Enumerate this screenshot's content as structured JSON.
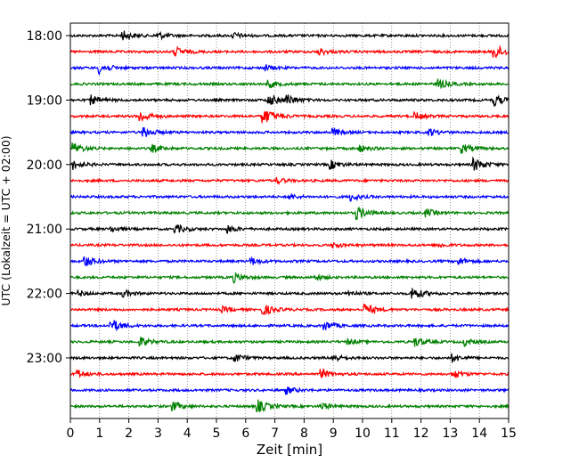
{
  "chart_data": {
    "type": "line",
    "xlabel": "Zeit  [min]",
    "ylabel": "UTC (Lokalzeit = UTC + 02:00)",
    "xlim": [
      0,
      15
    ],
    "x_ticks": [
      0,
      1,
      2,
      3,
      4,
      5,
      6,
      7,
      8,
      9,
      10,
      11,
      12,
      13,
      14,
      15
    ],
    "y_tick_labels": [
      "18:00",
      "19:00",
      "20:00",
      "21:00",
      "22:00",
      "23:00"
    ],
    "y_tick_trace_index": [
      0,
      4,
      8,
      12,
      16,
      20
    ],
    "trace_minutes": 15,
    "grid": "vertical dotted",
    "trace_colors": [
      "#000000",
      "#ff0000",
      "#0000ff",
      "#008000"
    ],
    "traces": [
      {
        "start": "18:00",
        "color": "#000000",
        "events": [
          [
            1.8,
            5
          ],
          [
            3.0,
            4
          ],
          [
            5.6,
            3
          ]
        ]
      },
      {
        "start": "18:15",
        "color": "#ff0000",
        "events": [
          [
            3.6,
            5
          ],
          [
            8.5,
            4
          ],
          [
            14.5,
            8
          ]
        ]
      },
      {
        "start": "18:30",
        "color": "#0000ff",
        "events": [
          [
            1.0,
            6
          ],
          [
            6.7,
            3
          ]
        ]
      },
      {
        "start": "18:45",
        "color": "#008000",
        "events": [
          [
            6.8,
            4
          ],
          [
            12.6,
            5
          ]
        ]
      },
      {
        "start": "19:00",
        "color": "#000000",
        "events": [
          [
            0.7,
            5
          ],
          [
            6.8,
            6
          ],
          [
            7.4,
            6
          ],
          [
            14.5,
            6
          ]
        ]
      },
      {
        "start": "19:15",
        "color": "#ff0000",
        "events": [
          [
            2.4,
            6
          ],
          [
            6.6,
            9
          ],
          [
            11.8,
            4
          ]
        ]
      },
      {
        "start": "19:30",
        "color": "#0000ff",
        "events": [
          [
            2.5,
            6
          ],
          [
            9.0,
            4
          ],
          [
            12.3,
            4
          ]
        ]
      },
      {
        "start": "19:45",
        "color": "#008000",
        "events": [
          [
            0.1,
            6
          ],
          [
            2.8,
            4
          ],
          [
            9.9,
            4
          ],
          [
            13.4,
            5
          ]
        ]
      },
      {
        "start": "20:00",
        "color": "#000000",
        "events": [
          [
            0.1,
            5
          ],
          [
            8.9,
            5
          ],
          [
            13.8,
            7
          ]
        ]
      },
      {
        "start": "20:15",
        "color": "#ff0000",
        "events": [
          [
            7.1,
            3
          ]
        ]
      },
      {
        "start": "20:30",
        "color": "#0000ff",
        "events": [
          [
            7.5,
            3
          ],
          [
            9.6,
            4
          ]
        ]
      },
      {
        "start": "20:45",
        "color": "#008000",
        "events": [
          [
            9.8,
            7
          ],
          [
            12.2,
            4
          ]
        ]
      },
      {
        "start": "21:00",
        "color": "#000000",
        "events": [
          [
            1.4,
            3
          ],
          [
            3.6,
            5
          ],
          [
            5.4,
            4
          ]
        ]
      },
      {
        "start": "21:15",
        "color": "#ff0000",
        "events": [
          [
            9.0,
            3
          ],
          [
            12.6,
            3
          ]
        ]
      },
      {
        "start": "21:30",
        "color": "#0000ff",
        "events": [
          [
            0.5,
            6
          ],
          [
            6.2,
            4
          ],
          [
            13.3,
            4
          ]
        ]
      },
      {
        "start": "21:45",
        "color": "#008000",
        "events": [
          [
            5.6,
            5
          ],
          [
            8.4,
            3
          ]
        ]
      },
      {
        "start": "22:00",
        "color": "#000000",
        "events": [
          [
            0.3,
            3
          ],
          [
            1.8,
            4
          ],
          [
            9.5,
            3
          ],
          [
            11.7,
            7
          ]
        ]
      },
      {
        "start": "22:15",
        "color": "#ff0000",
        "events": [
          [
            5.2,
            3
          ],
          [
            6.6,
            6
          ],
          [
            10.1,
            6
          ]
        ]
      },
      {
        "start": "22:30",
        "color": "#0000ff",
        "events": [
          [
            1.4,
            7
          ],
          [
            8.7,
            5
          ]
        ]
      },
      {
        "start": "22:45",
        "color": "#008000",
        "events": [
          [
            2.4,
            5
          ],
          [
            9.5,
            3
          ],
          [
            11.8,
            5
          ],
          [
            13.5,
            4
          ]
        ]
      },
      {
        "start": "23:00",
        "color": "#000000",
        "events": [
          [
            5.6,
            5
          ],
          [
            9.0,
            4
          ],
          [
            13.1,
            4
          ]
        ]
      },
      {
        "start": "23:15",
        "color": "#ff0000",
        "events": [
          [
            0.2,
            5
          ],
          [
            8.6,
            5
          ],
          [
            13.1,
            5
          ]
        ]
      },
      {
        "start": "23:30",
        "color": "#0000ff",
        "events": [
          [
            7.4,
            4
          ]
        ]
      },
      {
        "start": "23:45",
        "color": "#008000",
        "events": [
          [
            3.5,
            5
          ],
          [
            6.4,
            7
          ],
          [
            8.6,
            4
          ]
        ]
      }
    ]
  }
}
